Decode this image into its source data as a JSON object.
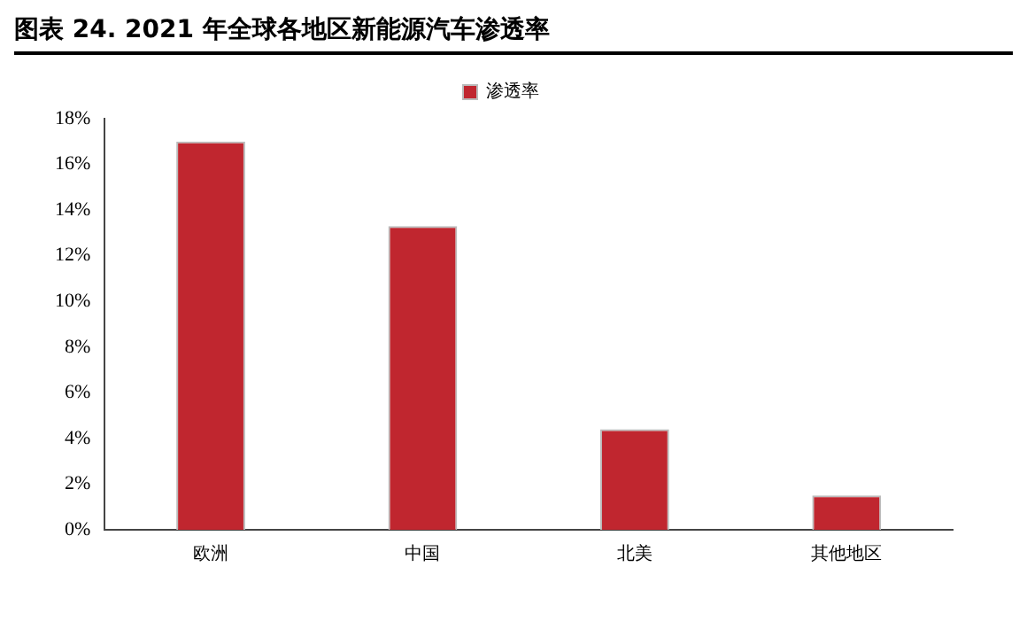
{
  "chart_data": {
    "type": "bar",
    "title": "图表 24. 2021 年全球各地区新能源汽车渗透率",
    "categories": [
      "欧洲",
      "中国",
      "北美",
      "其他地区"
    ],
    "series": [
      {
        "name": "渗透率",
        "color": "#c0262f",
        "values": [
          17,
          13.3,
          4.4,
          1.5
        ]
      }
    ],
    "ylim": [
      0,
      18
    ],
    "yticks": [
      {
        "value": 0,
        "label": "0%"
      },
      {
        "value": 2,
        "label": "2%"
      },
      {
        "value": 4,
        "label": "4%"
      },
      {
        "value": 6,
        "label": "6%"
      },
      {
        "value": 8,
        "label": "8%"
      },
      {
        "value": 10,
        "label": "10%"
      },
      {
        "value": 12,
        "label": "12%"
      },
      {
        "value": 14,
        "label": "14%"
      },
      {
        "value": 16,
        "label": "16%"
      },
      {
        "value": 18,
        "label": "18%"
      }
    ],
    "grid": false,
    "legend": "top"
  }
}
